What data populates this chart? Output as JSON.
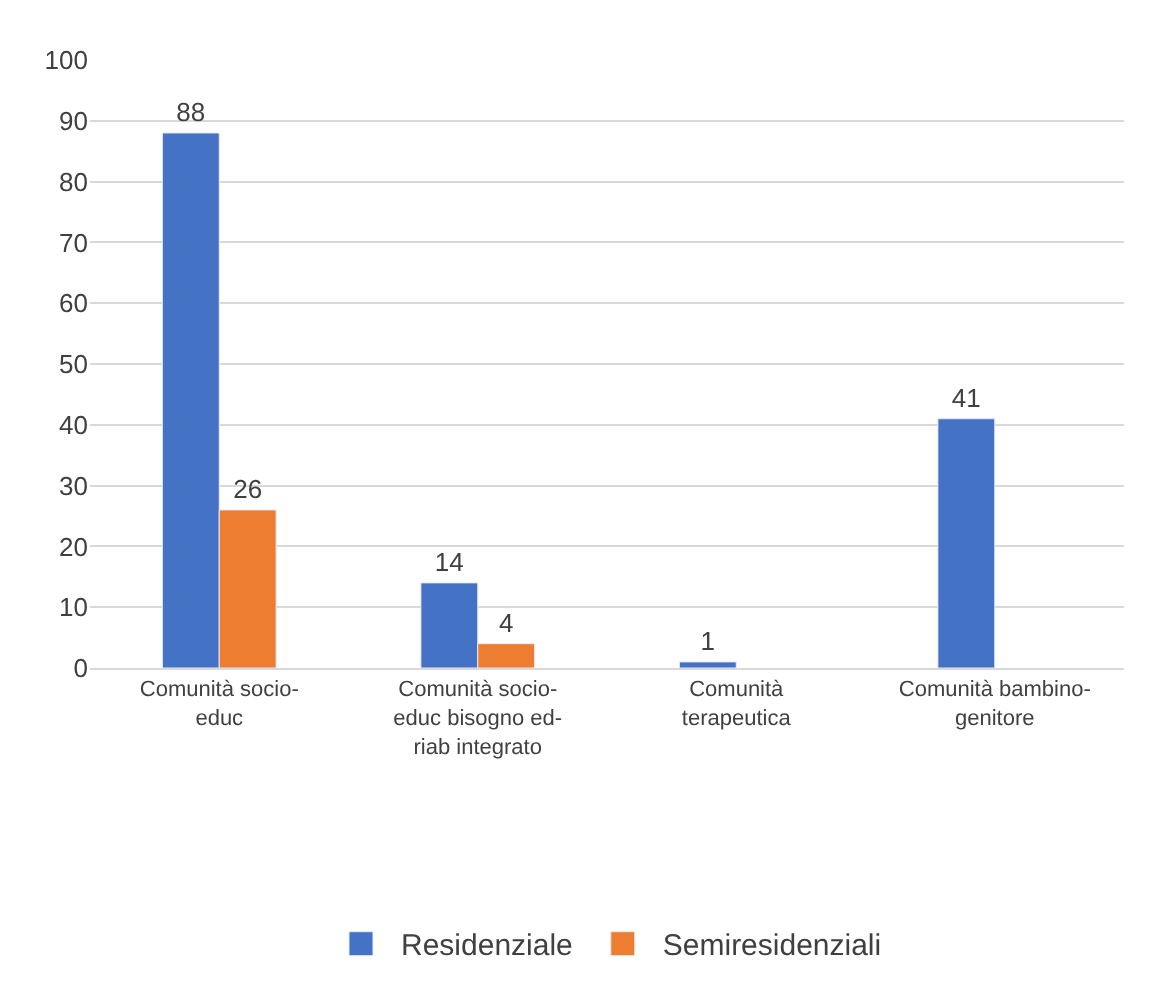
{
  "chart_data": {
    "type": "bar",
    "categories": [
      "Comunità socio-educ",
      "Comunità socio-educ bisogno ed-riab integrato",
      "Comunità terapeutica",
      "Comunità bambino-genitore"
    ],
    "series": [
      {
        "name": "Residenziale",
        "color": "#4472c4",
        "values": [
          88,
          14,
          1,
          41
        ]
      },
      {
        "name": "Semiresidenziali",
        "color": "#ed7d31",
        "values": [
          26,
          4,
          null,
          null
        ]
      }
    ],
    "ylim": [
      0,
      100
    ],
    "yticks": [
      0,
      10,
      20,
      30,
      40,
      50,
      60,
      70,
      80,
      90,
      100
    ],
    "grid": "y",
    "legend": "bottom",
    "data_labels": true
  }
}
